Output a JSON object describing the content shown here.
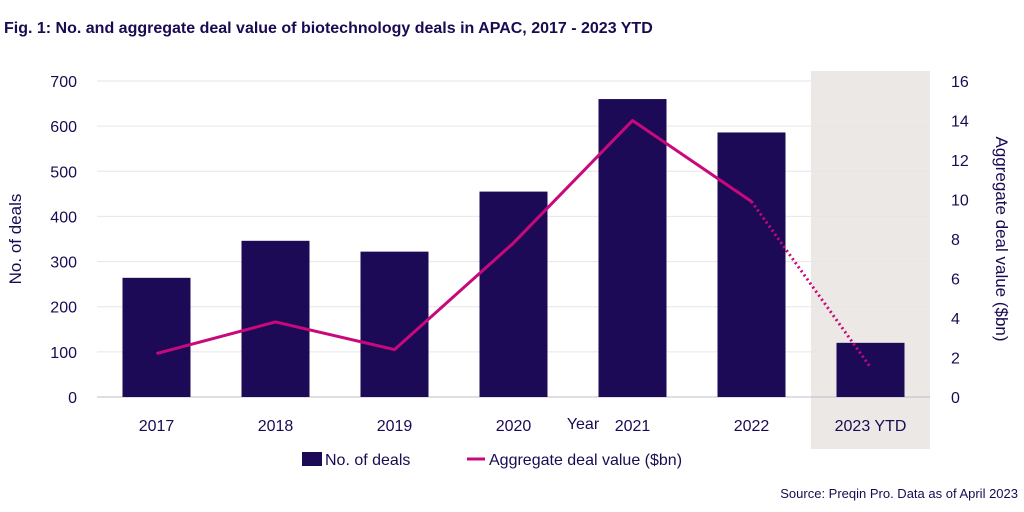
{
  "title": "Fig. 1: No. and aggregate deal value of biotechnology deals in APAC, 2017 - 2023 YTD",
  "source": "Source: Preqin Pro. Data as of April 2023",
  "colors": {
    "bars": "#1c0a57",
    "line": "#c8097c",
    "highlight": "#ece8e6",
    "text": "#1a0a52",
    "grid": "#e6e6ea"
  },
  "chart_data": {
    "type": "bar",
    "categories": [
      "2017",
      "2018",
      "2019",
      "2020",
      "2021",
      "2022",
      "2023 YTD"
    ],
    "xlabel": "Year",
    "ylabel": "No. of deals",
    "y2label": "Aggregate deal value ($bn)",
    "ylim": [
      0,
      700
    ],
    "y2lim": [
      0,
      16
    ],
    "yticks": [
      0,
      100,
      200,
      300,
      400,
      500,
      600,
      700
    ],
    "y2ticks": [
      0,
      2,
      4,
      6,
      8,
      10,
      12,
      14,
      16
    ],
    "highlighted_category": "2023 YTD",
    "series": [
      {
        "name": "No. of deals",
        "type": "bar",
        "axis": "left",
        "values": [
          264,
          346,
          322,
          455,
          660,
          586,
          120
        ]
      },
      {
        "name": "Aggregate deal value ($bn)",
        "type": "line",
        "axis": "right",
        "values": [
          2.2,
          3.8,
          2.4,
          7.8,
          14.0,
          9.9,
          1.5
        ],
        "dotted_last_segment": true
      }
    ],
    "legend_position": "bottom-center",
    "grid": true
  }
}
